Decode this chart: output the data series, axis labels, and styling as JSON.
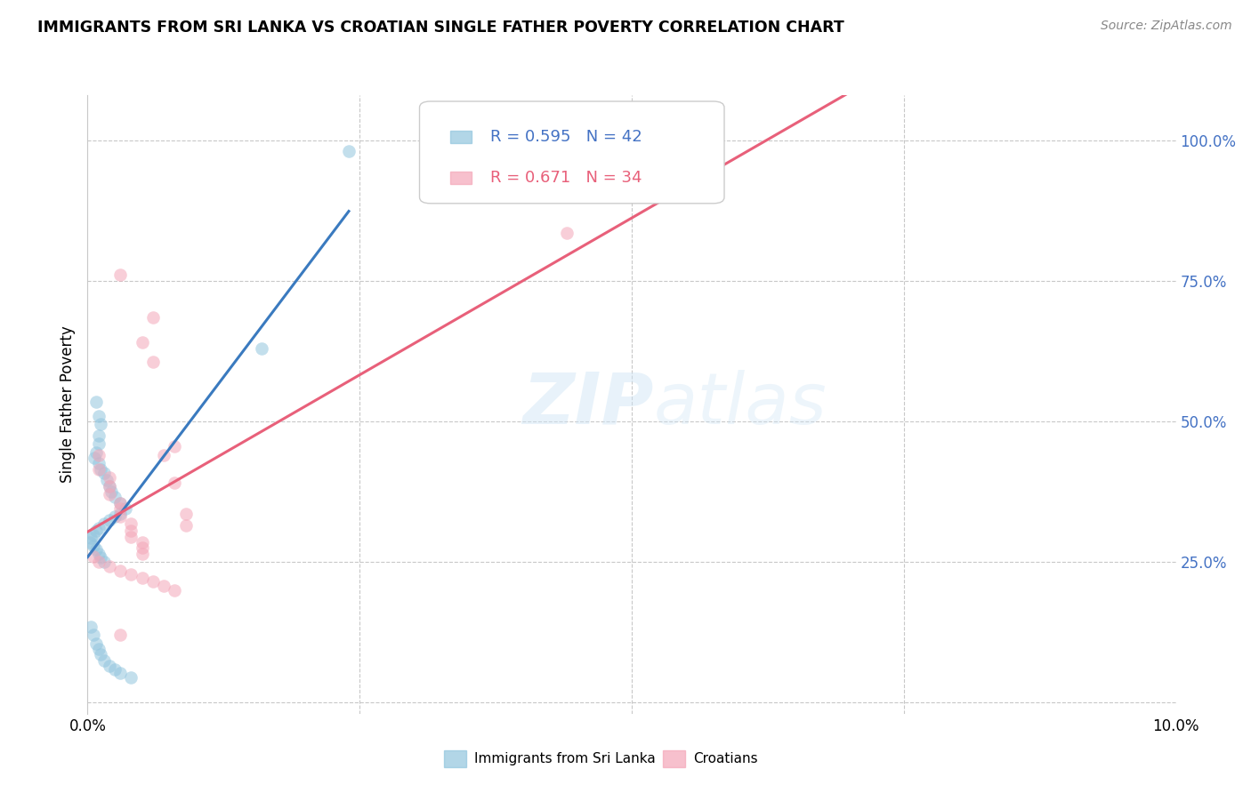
{
  "title": "IMMIGRANTS FROM SRI LANKA VS CROATIAN SINGLE FATHER POVERTY CORRELATION CHART",
  "source": "Source: ZipAtlas.com",
  "ylabel": "Single Father Poverty",
  "xlim": [
    0.0,
    0.1
  ],
  "ylim": [
    -0.02,
    1.08
  ],
  "legend_r_blue": "0.595",
  "legend_n_blue": "42",
  "legend_r_pink": "0.671",
  "legend_n_pink": "34",
  "legend_label_blue": "Immigrants from Sri Lanka",
  "legend_label_pink": "Croatians",
  "watermark": "ZIPatlas",
  "blue_color": "#92c5de",
  "pink_color": "#f4a6b8",
  "blue_line_color": "#3a7abf",
  "pink_line_color": "#e8607a",
  "blue_r_color": "#4472c4",
  "pink_r_color": "#e8607a",
  "ytick_color": "#4472c4",
  "blue_scatter": [
    [
      0.0008,
      0.535
    ],
    [
      0.001,
      0.51
    ],
    [
      0.0012,
      0.495
    ],
    [
      0.001,
      0.475
    ],
    [
      0.001,
      0.46
    ],
    [
      0.0008,
      0.445
    ],
    [
      0.0006,
      0.435
    ],
    [
      0.001,
      0.425
    ],
    [
      0.0012,
      0.415
    ],
    [
      0.0015,
      0.408
    ],
    [
      0.0018,
      0.395
    ],
    [
      0.002,
      0.385
    ],
    [
      0.0022,
      0.375
    ],
    [
      0.0025,
      0.365
    ],
    [
      0.003,
      0.355
    ],
    [
      0.0035,
      0.345
    ],
    [
      0.003,
      0.335
    ],
    [
      0.0025,
      0.33
    ],
    [
      0.002,
      0.325
    ],
    [
      0.0015,
      0.318
    ],
    [
      0.001,
      0.31
    ],
    [
      0.0008,
      0.305
    ],
    [
      0.0005,
      0.298
    ],
    [
      0.0003,
      0.292
    ],
    [
      0.0002,
      0.285
    ],
    [
      0.0005,
      0.278
    ],
    [
      0.0008,
      0.272
    ],
    [
      0.001,
      0.265
    ],
    [
      0.0012,
      0.258
    ],
    [
      0.0015,
      0.25
    ],
    [
      0.0003,
      0.135
    ],
    [
      0.0005,
      0.12
    ],
    [
      0.0008,
      0.105
    ],
    [
      0.001,
      0.095
    ],
    [
      0.0012,
      0.085
    ],
    [
      0.0015,
      0.075
    ],
    [
      0.002,
      0.065
    ],
    [
      0.0025,
      0.058
    ],
    [
      0.003,
      0.052
    ],
    [
      0.004,
      0.045
    ],
    [
      0.016,
      0.63
    ],
    [
      0.024,
      0.98
    ]
  ],
  "pink_scatter": [
    [
      0.003,
      0.76
    ],
    [
      0.005,
      0.64
    ],
    [
      0.006,
      0.605
    ],
    [
      0.006,
      0.685
    ],
    [
      0.007,
      0.44
    ],
    [
      0.008,
      0.455
    ],
    [
      0.008,
      0.39
    ],
    [
      0.009,
      0.335
    ],
    [
      0.009,
      0.315
    ],
    [
      0.044,
      0.835
    ],
    [
      0.001,
      0.44
    ],
    [
      0.001,
      0.415
    ],
    [
      0.002,
      0.4
    ],
    [
      0.002,
      0.385
    ],
    [
      0.002,
      0.37
    ],
    [
      0.003,
      0.355
    ],
    [
      0.003,
      0.345
    ],
    [
      0.003,
      0.33
    ],
    [
      0.004,
      0.318
    ],
    [
      0.004,
      0.305
    ],
    [
      0.004,
      0.295
    ],
    [
      0.005,
      0.285
    ],
    [
      0.005,
      0.275
    ],
    [
      0.005,
      0.265
    ],
    [
      0.0005,
      0.26
    ],
    [
      0.001,
      0.25
    ],
    [
      0.002,
      0.242
    ],
    [
      0.003,
      0.235
    ],
    [
      0.004,
      0.228
    ],
    [
      0.005,
      0.222
    ],
    [
      0.006,
      0.215
    ],
    [
      0.007,
      0.208
    ],
    [
      0.008,
      0.2
    ],
    [
      0.003,
      0.12
    ]
  ]
}
